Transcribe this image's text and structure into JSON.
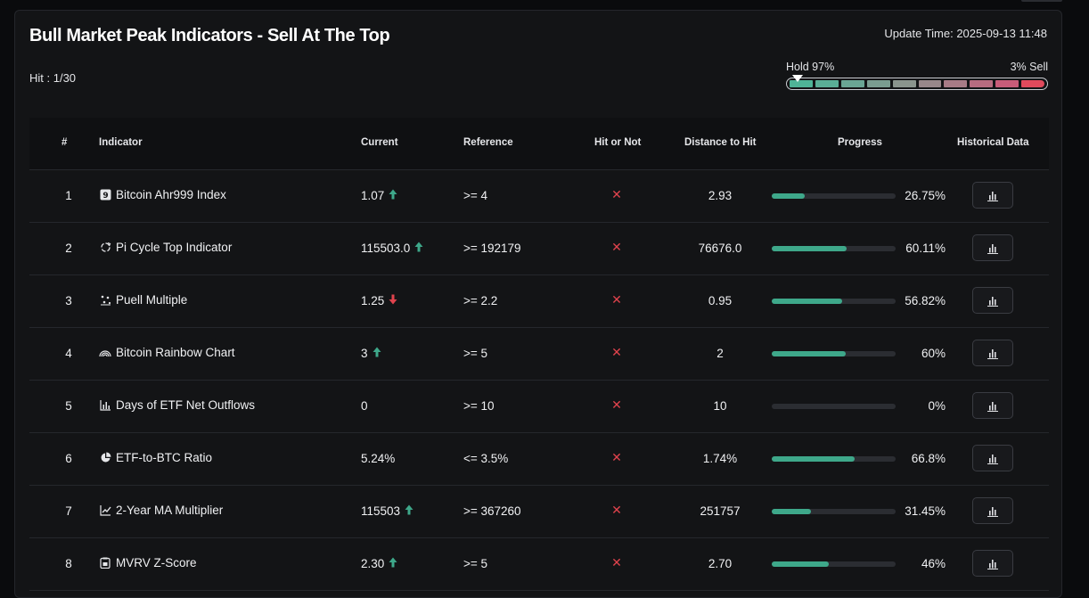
{
  "title": "Bull Market Peak Indicators - Sell At The Top",
  "hit_label": "Hit : 1/30",
  "update_time": "Update Time: 2025-09-13 11:48",
  "gauge": {
    "hold_label": "Hold 97%",
    "sell_label": "3% Sell",
    "hold_percent": 97,
    "segment_colors": [
      "#4fb497",
      "#5aae96",
      "#6aa594",
      "#7a9c90",
      "#8a948d",
      "#98878a",
      "#a77b86",
      "#b76c80",
      "#c85c79",
      "#e04a5c"
    ]
  },
  "columns": {
    "num": "#",
    "indicator": "Indicator",
    "current": "Current",
    "reference": "Reference",
    "hit": "Hit or Not",
    "distance": "Distance to Hit",
    "progress": "Progress",
    "history": "Historical Data"
  },
  "colors": {
    "up": "#3ea88a",
    "down": "#e0434d",
    "progress_fill": "#3ea88a"
  },
  "rows": [
    {
      "num": "1",
      "icon": "ahr999-icon",
      "name": "Bitcoin Ahr999 Index",
      "current": "1.07",
      "trend": "up",
      "reference": ">= 4",
      "hit": "✕",
      "distance": "2.93",
      "progress": 26.75,
      "progress_text": "26.75%"
    },
    {
      "num": "2",
      "icon": "pi-cycle-icon",
      "name": "Pi Cycle Top Indicator",
      "current": "115503.0",
      "trend": "up",
      "reference": ">= 192179",
      "hit": "✕",
      "distance": "76676.0",
      "progress": 60.11,
      "progress_text": "60.11%"
    },
    {
      "num": "3",
      "icon": "puell-icon",
      "name": "Puell Multiple",
      "current": "1.25",
      "trend": "down",
      "reference": ">= 2.2",
      "hit": "✕",
      "distance": "0.95",
      "progress": 56.82,
      "progress_text": "56.82%"
    },
    {
      "num": "4",
      "icon": "rainbow-icon",
      "name": "Bitcoin Rainbow Chart",
      "current": "3",
      "trend": "up",
      "reference": ">= 5",
      "hit": "✕",
      "distance": "2",
      "progress": 60,
      "progress_text": "60%"
    },
    {
      "num": "5",
      "icon": "bar-chart-icon",
      "name": "Days of ETF Net Outflows",
      "current": "0",
      "trend": "none",
      "reference": ">= 10",
      "hit": "✕",
      "distance": "10",
      "progress": 0,
      "progress_text": "0%"
    },
    {
      "num": "6",
      "icon": "pie-chart-icon",
      "name": "ETF-to-BTC Ratio",
      "current": "5.24%",
      "trend": "none",
      "reference": "<= 3.5%",
      "hit": "✕",
      "distance": "1.74%",
      "progress": 66.8,
      "progress_text": "66.8%"
    },
    {
      "num": "7",
      "icon": "line-chart-icon",
      "name": "2-Year MA Multiplier",
      "current": "115503",
      "trend": "up",
      "reference": ">= 367260",
      "hit": "✕",
      "distance": "251757",
      "progress": 31.45,
      "progress_text": "31.45%"
    },
    {
      "num": "8",
      "icon": "mvrv-icon",
      "name": "MVRV Z-Score",
      "current": "2.30",
      "trend": "up",
      "reference": ">= 5",
      "hit": "✕",
      "distance": "2.70",
      "progress": 46,
      "progress_text": "46%"
    }
  ]
}
